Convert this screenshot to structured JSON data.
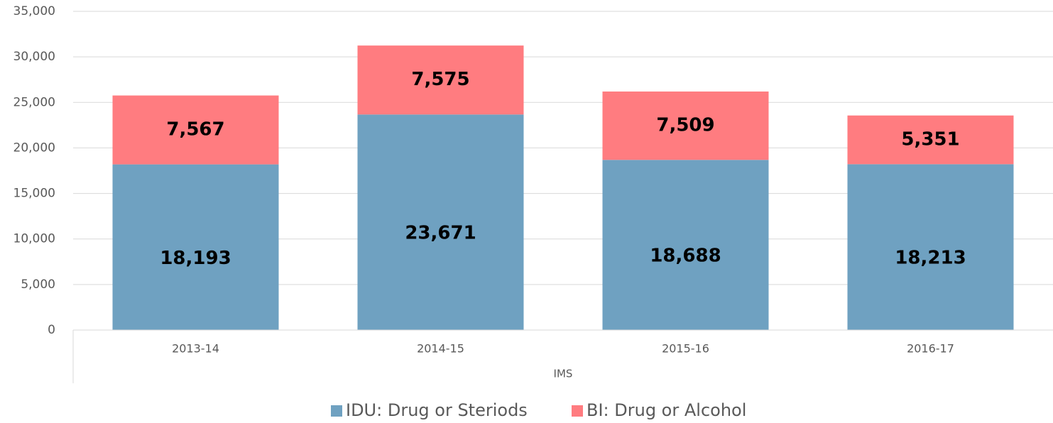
{
  "chart_data": {
    "type": "stacked_bar",
    "categories": [
      "2013-14",
      "2014-15",
      "2015-16",
      "2016-17"
    ],
    "group_label": "IMS",
    "series": [
      {
        "name": "IDU: Drug or Steriods",
        "color": "#6fa1c1",
        "values": [
          18193,
          23671,
          18688,
          18213
        ],
        "value_labels": [
          "18,193",
          "23,671",
          "18,688",
          "18,213"
        ]
      },
      {
        "name": "BI: Drug or Alcohol",
        "color": "#ff7c80",
        "values": [
          7567,
          7575,
          7509,
          5351
        ],
        "value_labels": [
          "7,567",
          "7,575",
          "7,509",
          "5,351"
        ]
      }
    ],
    "ylim": [
      0,
      35000
    ],
    "yticks": [
      0,
      {
        "value": 5000,
        "label": "5,000"
      },
      {
        "value": 10000,
        "label": "10,000"
      },
      {
        "value": 15000,
        "label": "15,000"
      },
      {
        "value": 20000,
        "label": "20,000"
      },
      {
        "value": 25000,
        "label": "25,000"
      },
      {
        "value": 30000,
        "label": "30,000"
      },
      {
        "value": 35000,
        "label": "35,000"
      }
    ],
    "grid": true,
    "legend": "bottom"
  }
}
